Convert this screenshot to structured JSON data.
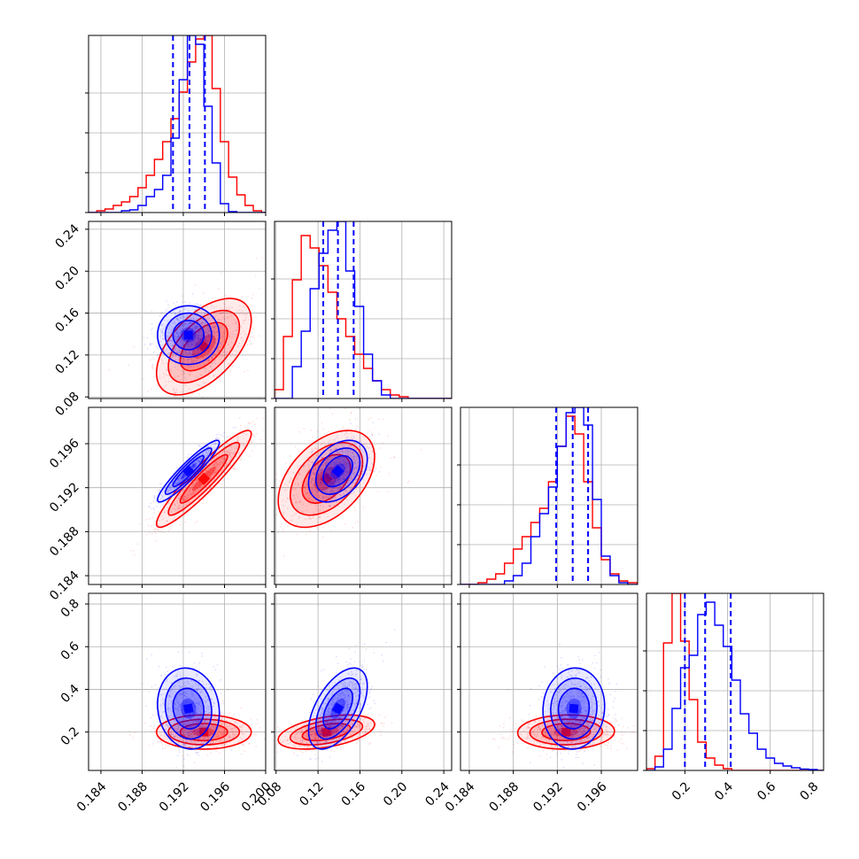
{
  "chart_data": {
    "type": "corner",
    "grid": true,
    "colors": {
      "blue": "#0000ff",
      "red": "#ff0000"
    },
    "parameters": [
      {
        "id": "p1",
        "range": [
          0.1828,
          0.2
        ],
        "ticks": [
          "0.184",
          "0.188",
          "0.192",
          "0.196",
          "0.200"
        ],
        "tick_values": [
          0.184,
          0.188,
          0.192,
          0.196,
          0.2
        ]
      },
      {
        "id": "p2",
        "range": [
          0.0785,
          0.2475
        ],
        "ticks": [
          "0.08",
          "0.12",
          "0.16",
          "0.20",
          "0.24"
        ],
        "tick_values": [
          0.08,
          0.12,
          0.16,
          0.2,
          0.24
        ]
      },
      {
        "id": "p3",
        "range": [
          0.1832,
          0.1993
        ],
        "ticks": [
          "0.184",
          "0.188",
          "0.192",
          "0.196"
        ],
        "tick_values": [
          0.184,
          0.188,
          0.192,
          0.196
        ]
      },
      {
        "id": "p4",
        "range": [
          0.02,
          0.85
        ],
        "ticks": [
          "0.2",
          "0.4",
          "0.6",
          "0.8"
        ],
        "tick_values": [
          0.2,
          0.4,
          0.6,
          0.8
        ]
      }
    ],
    "series": [
      {
        "color": "blue",
        "mean": [
          0.1925,
          0.139,
          0.1935,
          0.31
        ],
        "std": [
          0.0015,
          0.014,
          0.0014,
          0.095
        ],
        "cov": [
          [
            1,
            0,
            0.93,
            -0.1
          ],
          [
            0,
            1,
            0.38,
            0.55
          ],
          [
            0.93,
            0.38,
            1,
            0.05
          ],
          [
            -0.1,
            0.55,
            0.05,
            1
          ]
        ],
        "quantiles": [
          [
            0.191,
            0.1926,
            0.1941
          ],
          [
            0.125,
            0.139,
            0.154
          ],
          [
            0.1919,
            0.1934,
            0.1948
          ],
          [
            0.2,
            0.295,
            0.415
          ]
        ]
      },
      {
        "color": "red",
        "mean": [
          0.194,
          0.128,
          0.1928,
          0.2
        ],
        "std": [
          0.0023,
          0.023,
          0.0022,
          0.04
        ],
        "cov": [
          [
            1,
            0.55,
            0.93,
            0.0
          ],
          [
            0.55,
            1,
            0.45,
            0.45
          ],
          [
            0.93,
            0.45,
            1,
            0.05
          ],
          [
            0.0,
            0.45,
            0.05,
            1
          ]
        ]
      }
    ],
    "histograms": [
      {
        "param": 0,
        "bins": [
          0.1828,
          0.1836,
          0.1844,
          0.1852,
          0.186,
          0.1868,
          0.1876,
          0.1884,
          0.1892,
          0.19,
          0.1908,
          0.1916,
          0.1924,
          0.1932,
          0.194,
          0.1948,
          0.1956,
          0.1964,
          0.1972,
          0.198,
          0.1988,
          0.1996,
          0.2
        ],
        "blue": [
          0,
          0,
          0,
          0,
          0.01,
          0.015,
          0.04,
          0.09,
          0.13,
          0.21,
          0.42,
          0.75,
          1.0,
          0.95,
          0.6,
          0.28,
          0.05,
          0.005,
          0,
          0,
          0,
          0
        ],
        "red": [
          0,
          0.01,
          0.02,
          0.04,
          0.06,
          0.09,
          0.14,
          0.21,
          0.3,
          0.4,
          0.53,
          0.68,
          0.85,
          0.98,
          1.0,
          0.7,
          0.4,
          0.2,
          0.1,
          0.04,
          0.01,
          0.0
        ]
      },
      {
        "param": 1,
        "bins": [
          0.0785,
          0.087,
          0.0955,
          0.104,
          0.1125,
          0.121,
          0.1295,
          0.138,
          0.1465,
          0.155,
          0.1635,
          0.172,
          0.1805,
          0.189,
          0.1975,
          0.206,
          0.2145,
          0.223,
          0.2315,
          0.24,
          0.2475
        ],
        "blue": [
          0,
          0,
          0.18,
          0.38,
          0.62,
          0.82,
          0.95,
          1.0,
          0.72,
          0.52,
          0.25,
          0.1,
          0.02,
          0,
          0,
          0,
          0,
          0,
          0,
          0
        ],
        "red": [
          0.05,
          0.35,
          0.67,
          0.92,
          0.85,
          0.75,
          0.6,
          0.45,
          0.35,
          0.25,
          0.17,
          0.1,
          0.05,
          0.02,
          0.01,
          0,
          0,
          0,
          0,
          0
        ]
      },
      {
        "param": 2,
        "bins": [
          0.1832,
          0.184,
          0.1848,
          0.1856,
          0.1864,
          0.1872,
          0.188,
          0.1888,
          0.1896,
          0.1904,
          0.1912,
          0.192,
          0.1928,
          0.1936,
          0.1944,
          0.1952,
          0.196,
          0.1968,
          0.1976,
          0.1984,
          0.1993
        ],
        "blue": [
          0,
          0,
          0,
          0,
          0,
          0.02,
          0.05,
          0.12,
          0.27,
          0.4,
          0.55,
          0.78,
          0.97,
          1.0,
          0.9,
          0.48,
          0.16,
          0.05,
          0.01,
          0
        ],
        "red": [
          0,
          0,
          0.01,
          0.03,
          0.06,
          0.12,
          0.2,
          0.27,
          0.35,
          0.43,
          0.58,
          0.78,
          0.95,
          0.85,
          0.58,
          0.32,
          0.14,
          0.06,
          0.02,
          0.01
        ]
      },
      {
        "param": 3,
        "bins": [
          0.02,
          0.06,
          0.1,
          0.14,
          0.18,
          0.22,
          0.26,
          0.3,
          0.34,
          0.38,
          0.42,
          0.46,
          0.5,
          0.54,
          0.58,
          0.62,
          0.66,
          0.7,
          0.74,
          0.78,
          0.82,
          0.85
        ],
        "blue": [
          0,
          0.02,
          0.12,
          0.35,
          0.58,
          0.65,
          0.88,
          0.95,
          0.82,
          0.7,
          0.51,
          0.32,
          0.21,
          0.12,
          0.07,
          0.04,
          0.025,
          0.015,
          0.008,
          0.005,
          0
        ],
        "red": [
          0.01,
          0.08,
          0.72,
          1.0,
          0.73,
          0.4,
          0.16,
          0.07,
          0.03,
          0.01,
          0,
          0,
          0,
          0,
          0,
          0,
          0,
          0,
          0,
          0,
          0
        ]
      }
    ]
  }
}
